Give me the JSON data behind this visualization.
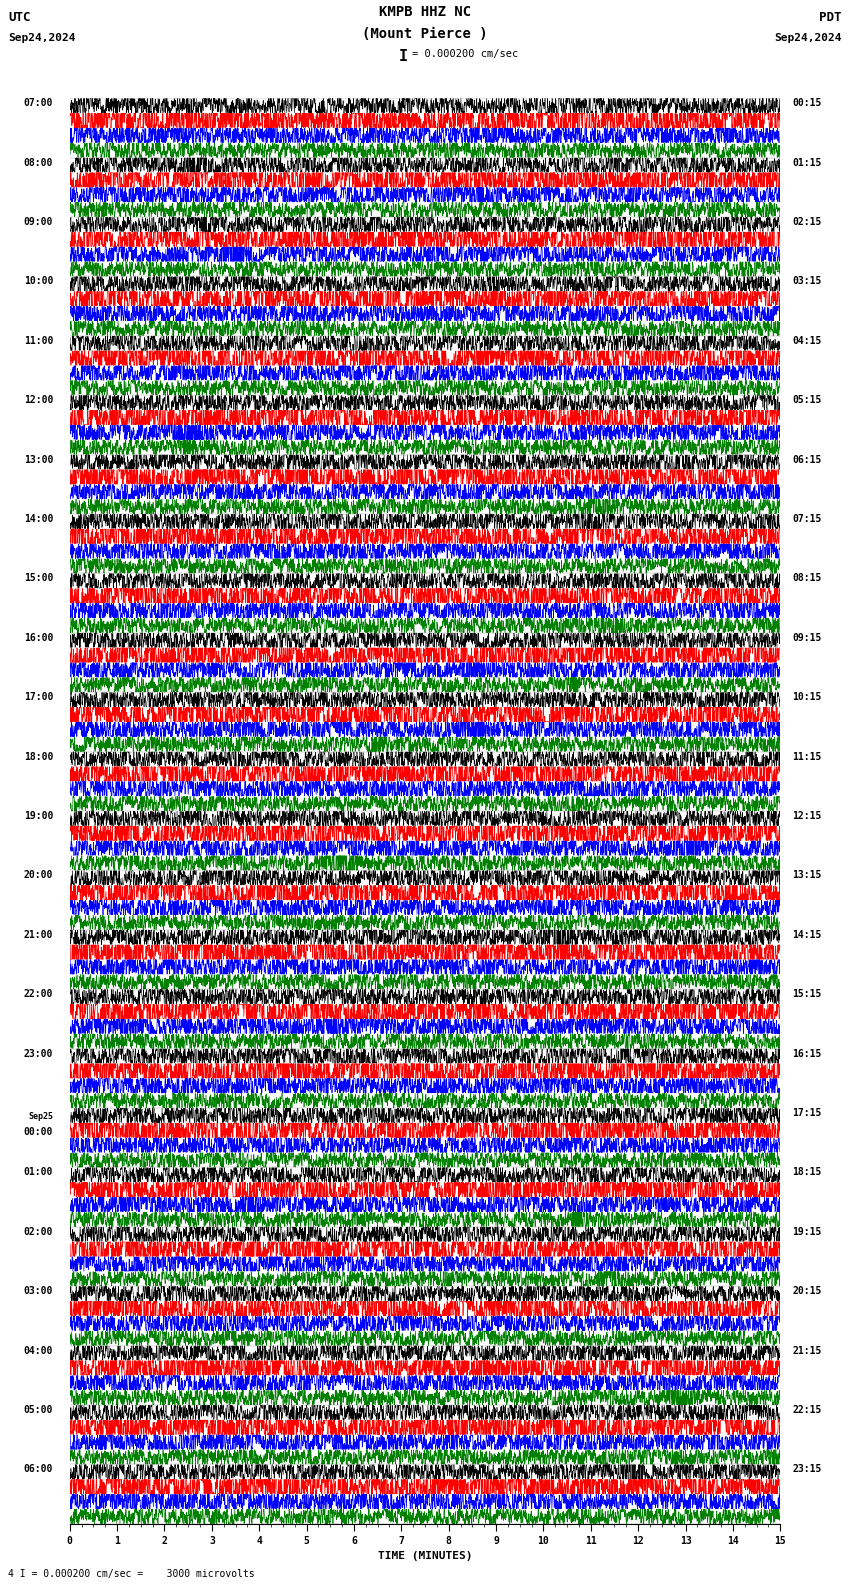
{
  "title_line1": "KMPB HHZ NC",
  "title_line2": "(Mount Pierce )",
  "scale_text": "= 0.000200 cm/sec",
  "utc_label": "UTC",
  "date_left": "Sep24,2024",
  "date_right": "Sep24,2024",
  "pdt_label": "PDT",
  "footer_text": "4 I = 0.000200 cm/sec =    3000 microvolts",
  "xlabel": "TIME (MINUTES)",
  "bg_color": "#ffffff",
  "trace_colors": [
    "#000000",
    "#ff0000",
    "#0000ff",
    "#008000"
  ],
  "minutes_per_row": 15,
  "n_hours": 24,
  "left_times": [
    "07:00",
    "08:00",
    "09:00",
    "10:00",
    "11:00",
    "12:00",
    "13:00",
    "14:00",
    "15:00",
    "16:00",
    "17:00",
    "18:00",
    "19:00",
    "20:00",
    "21:00",
    "22:00",
    "23:00",
    "Sep25\n00:00",
    "01:00",
    "02:00",
    "03:00",
    "04:00",
    "05:00",
    "06:00"
  ],
  "right_times": [
    "00:15",
    "01:15",
    "02:15",
    "03:15",
    "04:15",
    "05:15",
    "06:15",
    "07:15",
    "08:15",
    "09:15",
    "10:15",
    "11:15",
    "12:15",
    "13:15",
    "14:15",
    "15:15",
    "16:15",
    "17:15",
    "18:15",
    "19:15",
    "20:15",
    "21:15",
    "22:15",
    "23:15"
  ],
  "xmin": 0,
  "xmax": 15,
  "trace_amplitude": 0.45,
  "red_amplitude_boost": 1.8,
  "green_amplitude": 0.35,
  "pts": 3000
}
